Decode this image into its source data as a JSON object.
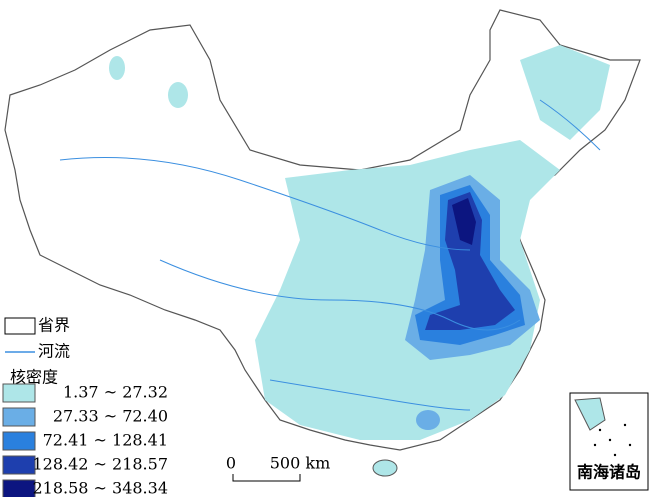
{
  "legend": {
    "boundary": "省界",
    "river": "河流",
    "density_title": "核密度",
    "classes": [
      {
        "label": "1.37 ~ 27.32",
        "color": "#aee6e8"
      },
      {
        "label": "27.33 ~ 72.40",
        "color": "#6aaee6"
      },
      {
        "label": "72.41 ~ 128.41",
        "color": "#2a80de"
      },
      {
        "label": "128.42 ~ 218.57",
        "color": "#1e3fae"
      },
      {
        "label": "218.58 ~ 348.34",
        "color": "#0c1580"
      }
    ]
  },
  "scale_bar": {
    "zero": "0",
    "distance": "500 km"
  },
  "inset": {
    "label": "南海诸岛"
  }
}
